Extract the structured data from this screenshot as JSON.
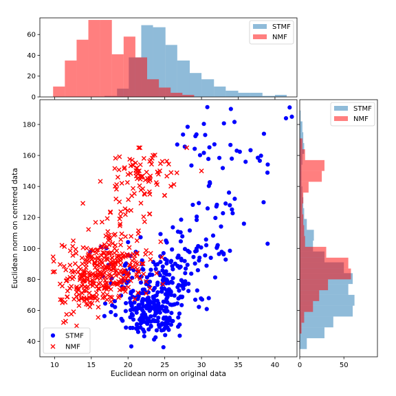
{
  "chart_data": [
    {
      "type": "scatter",
      "xlabel": "Euclidean norm on original data",
      "ylabel": "Euclidean norm on centered data",
      "xlim": [
        8,
        43
      ],
      "ylim": [
        30,
        196
      ],
      "xticks": [
        "10",
        "15",
        "20",
        "25",
        "30",
        "35",
        "40"
      ],
      "yticks": [
        "40",
        "60",
        "80",
        "100",
        "120",
        "140",
        "160",
        "180"
      ],
      "legend_position": "lower-left",
      "series": [
        {
          "name": "STMF",
          "marker": "circle",
          "color": "#0000ff"
        },
        {
          "name": "NMF",
          "marker": "x",
          "color": "#ff0000"
        }
      ]
    },
    {
      "type": "histogram",
      "orientation": "vertical",
      "xlim": [
        8,
        43
      ],
      "ylim": [
        0,
        76
      ],
      "yticks": [
        "0",
        "20",
        "40",
        "60"
      ],
      "legend_position": "top-right",
      "series": [
        {
          "name": "STMF",
          "color": "#1f77b4",
          "bins": [
            [
              15.2,
              16.8,
              0
            ],
            [
              16.8,
              18.5,
              1
            ],
            [
              18.5,
              20.1,
              8
            ],
            [
              20.1,
              21.8,
              38
            ],
            [
              21.8,
              23.4,
              69
            ],
            [
              23.4,
              25.1,
              67
            ],
            [
              25.1,
              26.7,
              50
            ],
            [
              26.7,
              28.4,
              35
            ],
            [
              28.4,
              30.0,
              23
            ],
            [
              30.0,
              31.7,
              17
            ],
            [
              31.7,
              33.3,
              10
            ],
            [
              33.3,
              35.0,
              6
            ],
            [
              35.0,
              36.6,
              4
            ],
            [
              36.6,
              38.3,
              4
            ],
            [
              38.3,
              40.0,
              1
            ],
            [
              40.0,
              41.6,
              2
            ]
          ]
        },
        {
          "name": "NMF",
          "color": "#ff0000",
          "bins": [
            [
              9.8,
              11.4,
              10
            ],
            [
              11.4,
              13.0,
              35
            ],
            [
              13.0,
              14.6,
              55
            ],
            [
              14.6,
              16.2,
              74
            ],
            [
              16.2,
              17.8,
              74
            ],
            [
              17.8,
              19.4,
              41
            ],
            [
              19.4,
              21.0,
              58
            ],
            [
              21.0,
              22.6,
              38
            ],
            [
              22.6,
              24.2,
              17
            ],
            [
              24.2,
              25.8,
              9
            ],
            [
              25.8,
              27.4,
              4
            ],
            [
              27.4,
              29.0,
              2
            ]
          ]
        }
      ]
    },
    {
      "type": "histogram",
      "orientation": "horizontal",
      "xlim": [
        0,
        88
      ],
      "ylim": [
        30,
        196
      ],
      "xticks": [
        "0",
        "50"
      ],
      "legend_position": "top-right",
      "series": [
        {
          "name": "STMF",
          "color": "#1f77b4",
          "bins": [
            [
              35,
              42,
              8
            ],
            [
              42,
              49,
              28
            ],
            [
              49,
              56,
              38
            ],
            [
              56,
              63,
              60
            ],
            [
              63,
              70,
              62
            ],
            [
              70,
              77,
              55
            ],
            [
              77,
              84,
              60
            ],
            [
              84,
              91,
              50
            ],
            [
              91,
              98,
              28
            ],
            [
              98,
              105,
              15
            ],
            [
              105,
              112,
              16
            ],
            [
              112,
              119,
              8
            ],
            [
              119,
              126,
              5
            ],
            [
              126,
              133,
              4
            ],
            [
              133,
              140,
              3
            ],
            [
              140,
              147,
              2
            ],
            [
              147,
              154,
              2
            ],
            [
              154,
              161,
              3
            ],
            [
              161,
              168,
              5
            ],
            [
              168,
              175,
              4
            ],
            [
              175,
              182,
              3
            ],
            [
              182,
              189,
              1
            ]
          ]
        },
        {
          "name": "NMF",
          "color": "#ff0000",
          "bins": [
            [
              45,
              52,
              2
            ],
            [
              52,
              59,
              5
            ],
            [
              59,
              66,
              15
            ],
            [
              66,
              73,
              22
            ],
            [
              73,
              80,
              32
            ],
            [
              80,
              87,
              58
            ],
            [
              87,
              94,
              55
            ],
            [
              94,
              101,
              30
            ],
            [
              101,
              108,
              6
            ],
            [
              108,
              115,
              5
            ],
            [
              115,
              122,
              4
            ],
            [
              122,
              129,
              3
            ],
            [
              129,
              136,
              4
            ],
            [
              136,
              143,
              10
            ],
            [
              143,
              150,
              25
            ],
            [
              150,
              157,
              28
            ],
            [
              157,
              164,
              6
            ],
            [
              164,
              171,
              3
            ]
          ]
        }
      ]
    }
  ]
}
